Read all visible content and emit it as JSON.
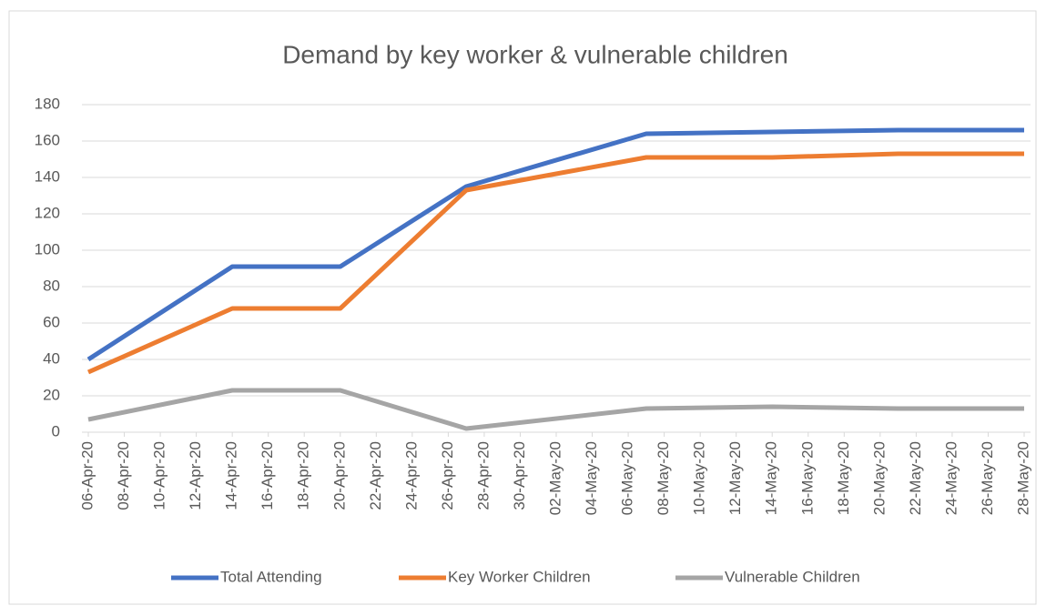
{
  "chart_data": {
    "type": "line",
    "title": "Demand by key worker & vulnerable children",
    "x": [
      "06-Apr-20",
      "14-Apr-20",
      "20-Apr-20",
      "27-Apr-20",
      "07-May-20",
      "14-May-20",
      "21-May-20",
      "28-May-20"
    ],
    "series": [
      {
        "name": "Total Attending",
        "color": "#4472c4",
        "values": [
          40,
          91,
          91,
          135,
          164,
          165,
          166,
          166
        ]
      },
      {
        "name": "Key Worker Children",
        "color": "#ed7d31",
        "values": [
          33,
          68,
          68,
          133,
          151,
          151,
          153,
          153
        ]
      },
      {
        "name": "Vulnerable Children",
        "color": "#a5a5a5",
        "values": [
          7,
          23,
          23,
          2,
          13,
          14,
          13,
          13
        ]
      }
    ],
    "xlim": [
      "06-Apr-20",
      "28-May-20"
    ],
    "xticks": [
      "06-Apr-20",
      "08-Apr-20",
      "10-Apr-20",
      "12-Apr-20",
      "14-Apr-20",
      "16-Apr-20",
      "18-Apr-20",
      "20-Apr-20",
      "22-Apr-20",
      "24-Apr-20",
      "26-Apr-20",
      "28-Apr-20",
      "30-Apr-20",
      "02-May-20",
      "04-May-20",
      "06-May-20",
      "08-May-20",
      "10-May-20",
      "12-May-20",
      "14-May-20",
      "16-May-20",
      "18-May-20",
      "20-May-20",
      "22-May-20",
      "24-May-20",
      "26-May-20",
      "28-May-20"
    ],
    "ylim": [
      0,
      180
    ],
    "yticks": [
      0,
      20,
      40,
      60,
      80,
      100,
      120,
      140,
      160,
      180
    ],
    "grid": true,
    "legend": "bottom"
  }
}
